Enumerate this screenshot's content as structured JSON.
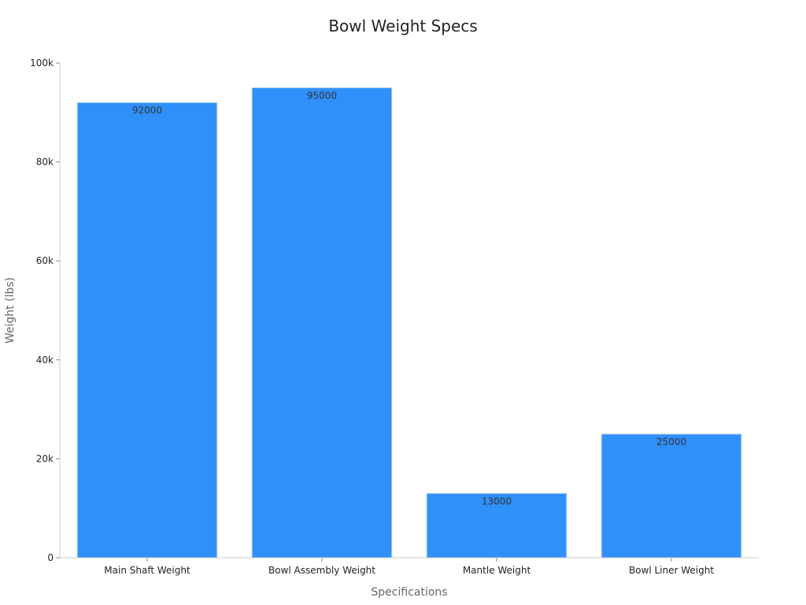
{
  "chart_data": {
    "type": "bar",
    "title": "Bowl Weight Specs",
    "xlabel": "Specifications",
    "ylabel": "Weight (lbs)",
    "categories": [
      "Main Shaft Weight",
      "Bowl Assembly Weight",
      "Mantle Weight",
      "Bowl Liner Weight"
    ],
    "values": [
      92000,
      95000,
      13000,
      25000
    ],
    "data_labels": [
      "92000",
      "95000",
      "13000",
      "25000"
    ],
    "ylim": [
      0,
      100000
    ],
    "yticks": [
      0,
      20000,
      40000,
      60000,
      80000,
      100000
    ],
    "ytick_labels": [
      "0",
      "20k",
      "40k",
      "60k",
      "80k",
      "100k"
    ],
    "grid": false,
    "legend": "none",
    "bar_color": "#2f90fa",
    "bar_edge_color": "#bcd4ef"
  }
}
